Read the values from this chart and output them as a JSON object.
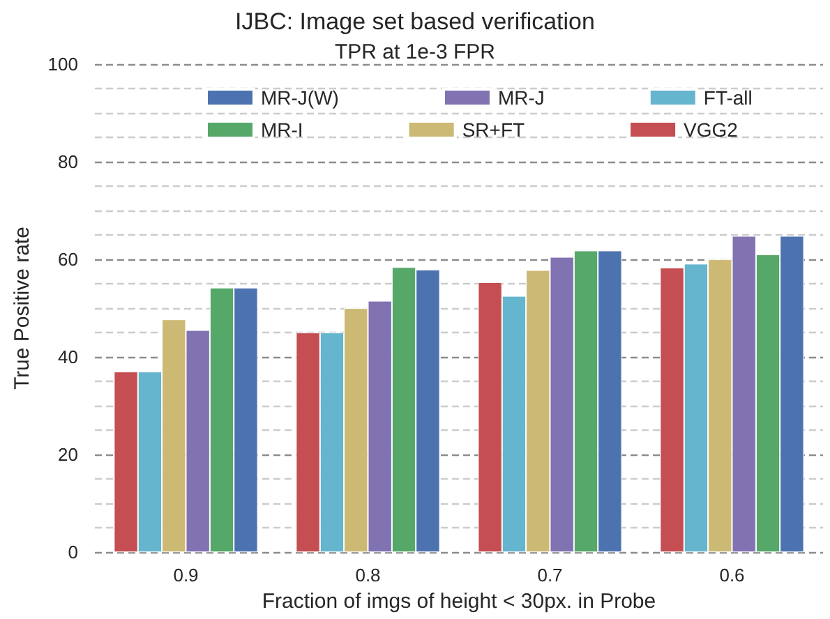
{
  "chart_data": {
    "type": "bar",
    "title": "IJBC: Image set based verification",
    "subtitle": "TPR at 1e-3 FPR",
    "xlabel": "Fraction of imgs of height < 30px. in Probe",
    "ylabel": "True Positive rate",
    "categories": [
      "0.9",
      "0.8",
      "0.7",
      "0.6"
    ],
    "series": [
      {
        "name": "VGG2",
        "color": "#c44e52",
        "values": [
          37,
          45,
          55.3,
          58.3
        ]
      },
      {
        "name": "FT-all",
        "color": "#64b5cd",
        "values": [
          37,
          45,
          52.5,
          59.1
        ]
      },
      {
        "name": "SR+FT",
        "color": "#ccb974",
        "values": [
          47.7,
          50,
          57.8,
          60
        ]
      },
      {
        "name": "MR-J",
        "color": "#8172b2",
        "values": [
          45.5,
          51.5,
          60.5,
          64.8
        ]
      },
      {
        "name": "MR-I",
        "color": "#55a868",
        "values": [
          54.2,
          58.4,
          61.8,
          61
        ]
      },
      {
        "name": "MR-J(W)",
        "color": "#4c72b0",
        "values": [
          54.2,
          57.9,
          61.8,
          64.8
        ]
      }
    ],
    "ylim": [
      0,
      100
    ],
    "yticks": [
      0,
      20,
      40,
      60,
      80,
      100
    ],
    "grid": true,
    "legend": "top"
  }
}
